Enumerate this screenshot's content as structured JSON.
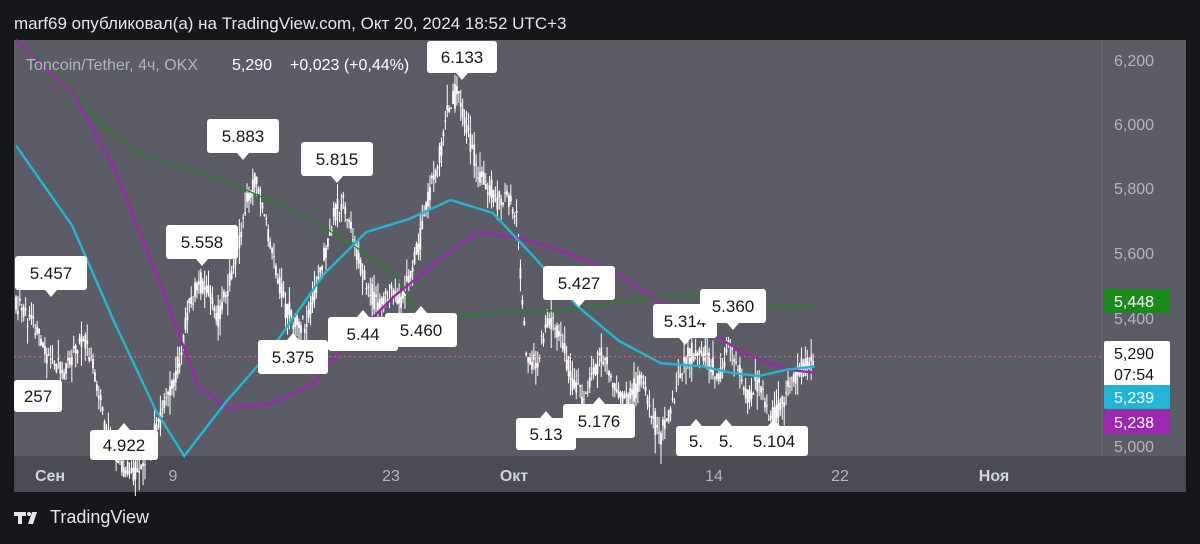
{
  "header": {
    "published": "marf69 опубликовал(а) на TradingView.com, Окт 20, 2024 18:52 UTC+3"
  },
  "legend": {
    "symbol": "Toncoin/Tether, 4ч, OKX",
    "price": "5,290",
    "change": "+0,023 (+0,44%)"
  },
  "footer": {
    "brand": "TradingView"
  },
  "colors": {
    "panel_bg": "#5b5c66",
    "candles": "#ffffff",
    "ma_cyan": "#22b5d6",
    "ma_purple": "#9c27b0",
    "ma_green": "#1b8a1b",
    "price_line": "#f05b8a"
  },
  "chart_data": {
    "type": "candlestick",
    "symbol": "Toncoin/Tether",
    "timeframe": "4ч",
    "exchange": "OKX",
    "y_ticks": [
      "6,200",
      "6,000",
      "5,800",
      "5,600",
      "5,400",
      "5,000"
    ],
    "ylim": [
      4.98,
      6.28
    ],
    "x_ticks": [
      {
        "label": "Сен",
        "bold": true
      },
      {
        "label": "9",
        "bold": false
      },
      {
        "label": "23",
        "bold": false
      },
      {
        "label": "Окт",
        "bold": true
      },
      {
        "label": "14",
        "bold": false
      },
      {
        "label": "22",
        "bold": false
      },
      {
        "label": "Ноя",
        "bold": true
      }
    ],
    "price_tags": [
      {
        "value": "5,448",
        "color": "#1b8a1b",
        "text_color": "#ffffff"
      },
      {
        "value": "5,290",
        "color": "#ffffff",
        "text_color": "#131722"
      },
      {
        "value": "07:54",
        "color": "#ffffff",
        "text_color": "#131722"
      },
      {
        "value": "5,239",
        "color": "#22b5d6",
        "text_color": "#ffffff"
      },
      {
        "value": "5,238",
        "color": "#9c27b0",
        "text_color": "#ffffff"
      }
    ],
    "callouts": [
      {
        "text": "5.457",
        "dir": "down"
      },
      {
        "text": "4.922",
        "dir": "up"
      },
      {
        "text": "5.558",
        "dir": "down"
      },
      {
        "text": "5.883",
        "dir": "down"
      },
      {
        "text": "5.375",
        "dir": "up"
      },
      {
        "text": "5.815",
        "dir": "down"
      },
      {
        "text": "5.44",
        "dir": "up"
      },
      {
        "text": "5.460",
        "dir": "up"
      },
      {
        "text": "6.133",
        "dir": "down"
      },
      {
        "text": "5.427",
        "dir": "down"
      },
      {
        "text": "5.13",
        "dir": "up"
      },
      {
        "text": "5.176",
        "dir": "up"
      },
      {
        "text": "5.314",
        "dir": "down"
      },
      {
        "text": "5.360",
        "dir": "down"
      },
      {
        "text": "5.",
        "dir": "up"
      },
      {
        "text": "5.",
        "dir": "up"
      },
      {
        "text": "5.104",
        "dir": "up"
      },
      {
        "text": "257",
        "dir": "none"
      }
    ],
    "price_series": [
      5.45,
      5.43,
      5.38,
      5.3,
      5.26,
      5.24,
      5.3,
      5.36,
      5.25,
      5.12,
      5.0,
      4.95,
      4.93,
      4.95,
      5.02,
      5.1,
      5.18,
      5.28,
      5.45,
      5.53,
      5.48,
      5.42,
      5.5,
      5.62,
      5.78,
      5.85,
      5.7,
      5.55,
      5.45,
      5.4,
      5.38,
      5.48,
      5.6,
      5.72,
      5.78,
      5.66,
      5.55,
      5.48,
      5.45,
      5.5,
      5.46,
      5.55,
      5.66,
      5.8,
      5.92,
      6.08,
      6.12,
      5.98,
      5.88,
      5.82,
      5.78,
      5.8,
      5.72,
      5.3,
      5.25,
      5.38,
      5.4,
      5.3,
      5.2,
      5.15,
      5.24,
      5.3,
      5.2,
      5.16,
      5.18,
      5.22,
      5.1,
      5.05,
      5.12,
      5.24,
      5.3,
      5.31,
      5.28,
      5.22,
      5.34,
      5.26,
      5.16,
      5.22,
      5.12,
      5.11,
      5.18,
      5.24,
      5.26,
      5.29
    ],
    "ma_cyan": [
      [
        0,
        5.95
      ],
      [
        8,
        5.7
      ],
      [
        14,
        5.4
      ],
      [
        20,
        5.12
      ],
      [
        24,
        4.98
      ],
      [
        30,
        5.15
      ],
      [
        36,
        5.3
      ],
      [
        44,
        5.55
      ],
      [
        50,
        5.68
      ],
      [
        56,
        5.72
      ],
      [
        62,
        5.78
      ],
      [
        68,
        5.74
      ],
      [
        74,
        5.6
      ],
      [
        80,
        5.45
      ],
      [
        86,
        5.34
      ],
      [
        92,
        5.27
      ],
      [
        98,
        5.26
      ],
      [
        102,
        5.24
      ],
      [
        106,
        5.23
      ],
      [
        110,
        5.25
      ],
      [
        114,
        5.26
      ]
    ],
    "ma_purple": [
      [
        0,
        6.28
      ],
      [
        8,
        6.12
      ],
      [
        14,
        5.88
      ],
      [
        20,
        5.55
      ],
      [
        26,
        5.2
      ],
      [
        30,
        5.13
      ],
      [
        36,
        5.14
      ],
      [
        42,
        5.2
      ],
      [
        48,
        5.35
      ],
      [
        54,
        5.48
      ],
      [
        58,
        5.55
      ],
      [
        62,
        5.62
      ],
      [
        66,
        5.68
      ],
      [
        72,
        5.66
      ],
      [
        78,
        5.62
      ],
      [
        86,
        5.55
      ],
      [
        92,
        5.46
      ],
      [
        98,
        5.38
      ],
      [
        104,
        5.3
      ],
      [
        110,
        5.25
      ],
      [
        114,
        5.24
      ]
    ],
    "ma_green": [
      [
        0,
        6.28
      ],
      [
        6,
        6.18
      ],
      [
        12,
        6.02
      ],
      [
        18,
        5.92
      ],
      [
        24,
        5.88
      ],
      [
        30,
        5.84
      ],
      [
        36,
        5.78
      ],
      [
        42,
        5.72
      ],
      [
        48,
        5.64
      ],
      [
        54,
        5.55
      ],
      [
        58,
        5.4
      ],
      [
        62,
        5.41
      ],
      [
        68,
        5.43
      ],
      [
        74,
        5.43
      ],
      [
        80,
        5.44
      ],
      [
        86,
        5.46
      ],
      [
        92,
        5.48
      ],
      [
        98,
        5.48
      ],
      [
        104,
        5.46
      ],
      [
        110,
        5.45
      ],
      [
        114,
        5.448
      ]
    ]
  }
}
